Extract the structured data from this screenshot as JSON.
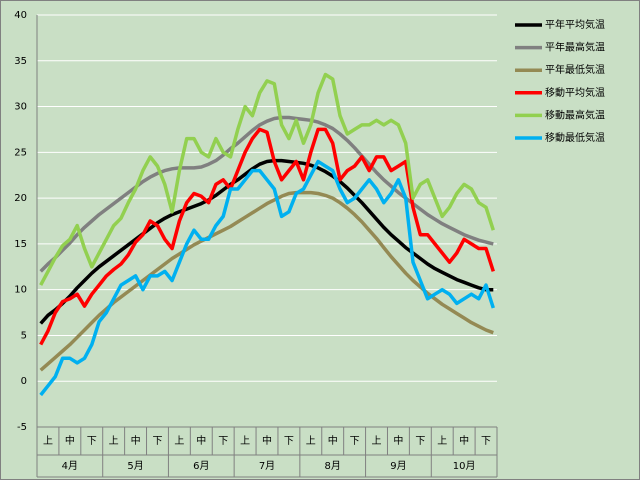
{
  "chart_data": {
    "type": "line",
    "categories": [
      null,
      "上",
      null,
      null,
      "中",
      null,
      null,
      "下",
      null,
      null,
      "上",
      null,
      null,
      "中",
      null,
      null,
      "下",
      null,
      null,
      "上",
      null,
      null,
      "中",
      null,
      null,
      "下",
      null,
      null,
      "上",
      null,
      null,
      "中",
      null,
      null,
      "下",
      null,
      null,
      "上",
      null,
      null,
      "中",
      null,
      null,
      "下",
      null,
      null,
      "上",
      null,
      null,
      "中",
      null,
      null,
      "下",
      null,
      null,
      "上",
      null,
      null,
      "中",
      null,
      null,
      "下",
      null
    ],
    "groups": [
      "4月",
      "5月",
      "6月",
      "7月",
      "8月",
      "9月",
      "10月"
    ],
    "ylim": [
      -5,
      40
    ],
    "yticks": [
      -5,
      0,
      5,
      10,
      15,
      20,
      25,
      30,
      35,
      40
    ],
    "grid": true,
    "legend": "right",
    "series": [
      {
        "name": "平年平均気温",
        "color": "#000000",
        "values": [
          6.3,
          7.2,
          7.8,
          8.5,
          9.3,
          10.2,
          11.0,
          11.8,
          12.5,
          13.1,
          13.7,
          14.3,
          14.9,
          15.5,
          16.1,
          16.7,
          17.3,
          17.8,
          18.2,
          18.5,
          18.8,
          19.1,
          19.4,
          19.8,
          20.3,
          20.9,
          21.5,
          22.0,
          22.6,
          23.2,
          23.7,
          24.0,
          24.1,
          24.1,
          24.0,
          23.9,
          23.8,
          23.6,
          23.3,
          22.9,
          22.4,
          21.8,
          21.1,
          20.3,
          19.5,
          18.6,
          17.7,
          16.8,
          16.0,
          15.3,
          14.6,
          14.0,
          13.4,
          12.8,
          12.3,
          11.9,
          11.5,
          11.1,
          10.8,
          10.5,
          10.2,
          10.0,
          10.0
        ]
      },
      {
        "name": "平年最高気温",
        "color": "#808080",
        "values": [
          12.0,
          12.8,
          13.5,
          14.3,
          15.1,
          16.0,
          16.8,
          17.5,
          18.2,
          18.8,
          19.4,
          20.0,
          20.6,
          21.2,
          21.8,
          22.3,
          22.7,
          23.0,
          23.2,
          23.3,
          23.3,
          23.3,
          23.4,
          23.7,
          24.1,
          24.7,
          25.4,
          26.0,
          26.7,
          27.4,
          28.0,
          28.4,
          28.7,
          28.8,
          28.8,
          28.7,
          28.6,
          28.5,
          28.3,
          28.0,
          27.6,
          27.0,
          26.3,
          25.5,
          24.6,
          23.7,
          22.8,
          22.0,
          21.3,
          20.6,
          20.0,
          19.4,
          18.8,
          18.2,
          17.7,
          17.2,
          16.8,
          16.4,
          16.0,
          15.7,
          15.4,
          15.2,
          15.0
        ]
      },
      {
        "name": "平年最低気温",
        "color": "#948a54",
        "values": [
          1.2,
          1.9,
          2.6,
          3.3,
          4.0,
          4.8,
          5.6,
          6.4,
          7.2,
          7.9,
          8.6,
          9.2,
          9.8,
          10.4,
          11.0,
          11.6,
          12.2,
          12.8,
          13.4,
          13.9,
          14.4,
          14.9,
          15.3,
          15.7,
          16.1,
          16.5,
          16.9,
          17.4,
          17.9,
          18.4,
          18.9,
          19.4,
          19.8,
          20.2,
          20.5,
          20.6,
          20.6,
          20.6,
          20.5,
          20.3,
          20.0,
          19.5,
          18.9,
          18.2,
          17.4,
          16.5,
          15.6,
          14.6,
          13.6,
          12.7,
          11.8,
          11.0,
          10.3,
          9.6,
          9.0,
          8.4,
          7.9,
          7.4,
          6.9,
          6.4,
          6.0,
          5.6,
          5.3
        ]
      },
      {
        "name": "移動平均気温",
        "color": "#ff0000",
        "values": [
          4.0,
          5.5,
          7.5,
          8.7,
          9.0,
          9.5,
          8.2,
          9.5,
          10.5,
          11.5,
          12.2,
          12.8,
          13.8,
          15.2,
          16.0,
          17.5,
          17.0,
          15.5,
          14.5,
          17.5,
          19.5,
          20.5,
          20.2,
          19.5,
          21.5,
          22.0,
          21.0,
          23.0,
          25.0,
          26.5,
          27.5,
          27.2,
          24.0,
          22.0,
          23.0,
          24.0,
          22.0,
          25.0,
          27.5,
          27.5,
          26.0,
          22.0,
          23.0,
          23.5,
          24.5,
          23.0,
          24.5,
          24.5,
          23.0,
          23.5,
          24.0,
          19.0,
          16.0,
          16.0,
          15.0,
          14.0,
          13.0,
          14.0,
          15.5,
          15.0,
          14.5,
          14.5,
          12.0
        ]
      },
      {
        "name": "移動最高気温",
        "color": "#92d050",
        "values": [
          10.5,
          12.0,
          13.5,
          14.8,
          15.5,
          17.0,
          14.5,
          12.5,
          14.0,
          15.5,
          17.0,
          17.8,
          19.5,
          21.0,
          23.0,
          24.5,
          23.5,
          21.5,
          18.5,
          23.0,
          26.5,
          26.5,
          25.0,
          24.5,
          26.5,
          25.0,
          24.5,
          27.5,
          30.0,
          29.0,
          31.5,
          32.8,
          32.5,
          28.0,
          26.5,
          28.5,
          26.0,
          28.0,
          31.5,
          33.5,
          33.0,
          29.0,
          27.0,
          27.5,
          28.0,
          28.0,
          28.5,
          28.0,
          28.5,
          28.0,
          26.0,
          20.0,
          21.5,
          22.0,
          20.0,
          18.0,
          19.0,
          20.5,
          21.5,
          21.0,
          19.5,
          19.0,
          16.5
        ]
      },
      {
        "name": "移動最低気温",
        "color": "#00b0f0",
        "values": [
          -1.5,
          -0.5,
          0.5,
          2.5,
          2.5,
          2.0,
          2.5,
          4.0,
          6.5,
          7.5,
          9.0,
          10.5,
          11.0,
          11.5,
          10.0,
          11.5,
          11.5,
          12.0,
          11.0,
          13.0,
          15.0,
          16.5,
          15.5,
          15.5,
          17.0,
          18.0,
          21.0,
          21.0,
          22.0,
          23.0,
          23.0,
          22.0,
          21.0,
          18.0,
          18.5,
          20.5,
          21.0,
          22.5,
          24.0,
          23.5,
          23.0,
          21.0,
          19.5,
          20.0,
          21.0,
          22.0,
          21.0,
          19.5,
          20.5,
          22.0,
          20.0,
          13.0,
          11.0,
          9.0,
          9.5,
          10.0,
          9.5,
          8.5,
          9.0,
          9.5,
          9.0,
          10.5,
          8.0
        ]
      }
    ]
  }
}
